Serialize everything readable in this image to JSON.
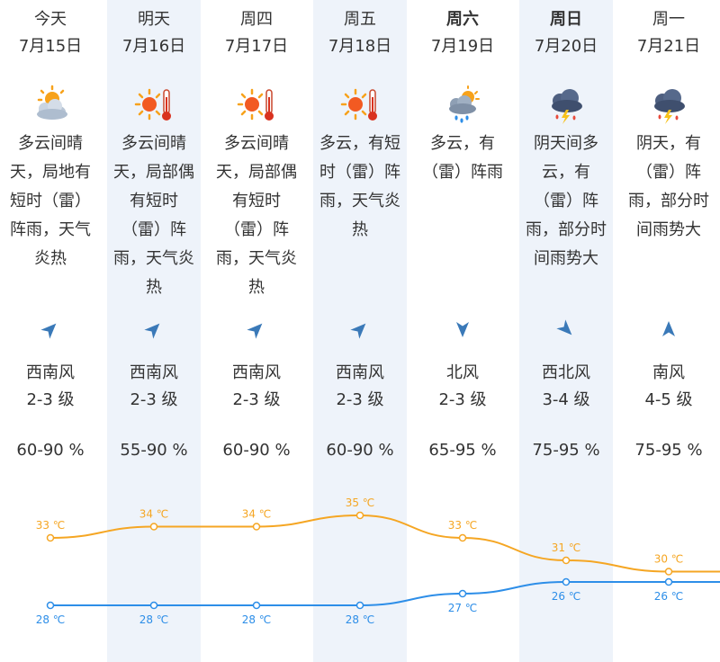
{
  "days": [
    {
      "name": "今天",
      "date": "7月15日",
      "weekend": false,
      "icon": "partly-cloudy-sun-icon",
      "desc": "多云间晴\n天，局地有\n短时（雷）\n阵雨，天气\n炎热",
      "wind_dir": "西南风",
      "wind_level": "2-3 级",
      "wind_arrow": "northeast",
      "humidity": "60-90 %"
    },
    {
      "name": "明天",
      "date": "7月16日",
      "weekend": false,
      "icon": "sun-hot-icon",
      "desc": "多云间晴\n天，局部偶\n有短时\n（雷）阵\n雨，天气炎\n热",
      "wind_dir": "西南风",
      "wind_level": "2-3 级",
      "wind_arrow": "northeast",
      "humidity": "55-90 %"
    },
    {
      "name": "周四",
      "date": "7月17日",
      "weekend": false,
      "icon": "sun-hot-icon",
      "desc": "多云间晴\n天，局部偶\n有短时\n（雷）阵\n雨，天气炎\n热",
      "wind_dir": "西南风",
      "wind_level": "2-3 级",
      "wind_arrow": "northeast",
      "humidity": "60-90 %"
    },
    {
      "name": "周五",
      "date": "7月18日",
      "weekend": false,
      "icon": "sun-hot-icon",
      "desc": "多云，有短\n时（雷）阵\n雨，天气炎\n热",
      "wind_dir": "西南风",
      "wind_level": "2-3 级",
      "wind_arrow": "northeast",
      "humidity": "60-90 %"
    },
    {
      "name": "周六",
      "date": "7月19日",
      "weekend": true,
      "icon": "cloudy-rain-icon",
      "desc": "多云，有\n（雷）阵雨",
      "wind_dir": "北风",
      "wind_level": "2-3 级",
      "wind_arrow": "south",
      "humidity": "65-95 %"
    },
    {
      "name": "周日",
      "date": "7月20日",
      "weekend": true,
      "icon": "thunderstorm-icon",
      "desc": "阴天间多\n云，有\n（雷）阵\n雨，部分时\n间雨势大",
      "wind_dir": "西北风",
      "wind_level": "3-4 级",
      "wind_arrow": "southeast",
      "humidity": "75-95 %"
    },
    {
      "name": "周一",
      "date": "7月21日",
      "weekend": false,
      "icon": "thunderstorm-icon",
      "desc": "阴天，有\n（雷）阵\n雨，部分时\n间雨势大",
      "wind_dir": "南风",
      "wind_level": "4-5 级",
      "wind_arrow": "north",
      "humidity": "75-95 %"
    }
  ],
  "chart_data": {
    "type": "line",
    "categories": [
      "7月15日",
      "7月16日",
      "7月17日",
      "7月18日",
      "7月19日",
      "7月20日",
      "7月21日"
    ],
    "series": [
      {
        "values": [
          33,
          34,
          34,
          35,
          33,
          31,
          30
        ],
        "labels": [
          "33 ℃",
          "34 ℃",
          "34 ℃",
          "35 ℃",
          "33 ℃",
          "31 ℃",
          "30 ℃"
        ],
        "color": "#f5a623"
      },
      {
        "values": [
          28,
          28,
          28,
          28,
          27,
          26,
          26
        ],
        "labels": [
          "28 ℃",
          "28 ℃",
          "28 ℃",
          "28 ℃",
          "27 ℃",
          "26 ℃",
          "26 ℃"
        ],
        "color": "#2d8ee8"
      }
    ]
  },
  "colors": {
    "shade": "#eef3fa",
    "high": "#f5a623",
    "low": "#2d8ee8",
    "arrow": "#3a79b8"
  }
}
